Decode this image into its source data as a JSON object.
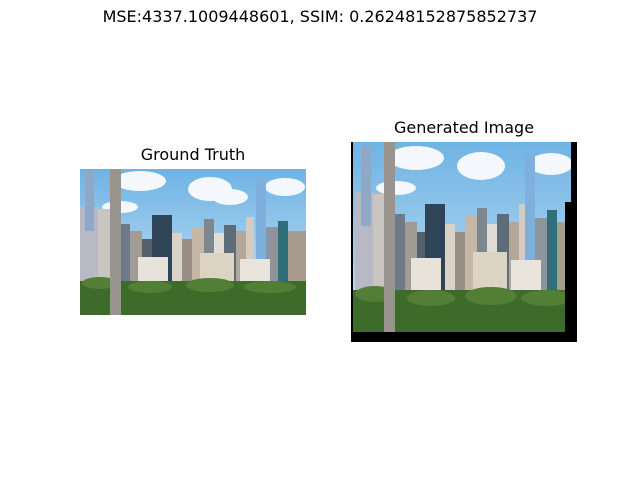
{
  "figure": {
    "title": "MSE:4337.1009448601, SSIM: 0.26248152875852737"
  },
  "panels": [
    {
      "title": "Ground Truth",
      "image": "city-skyline-photo"
    },
    {
      "title": "Generated Image",
      "image": "warped-city-skyline-photo"
    }
  ],
  "colors": {
    "sky": "#8ec5ea",
    "cloud": "#f4f7fb",
    "park": "#3d6b2a",
    "pillar": "#9a948e",
    "border": "#000000"
  }
}
